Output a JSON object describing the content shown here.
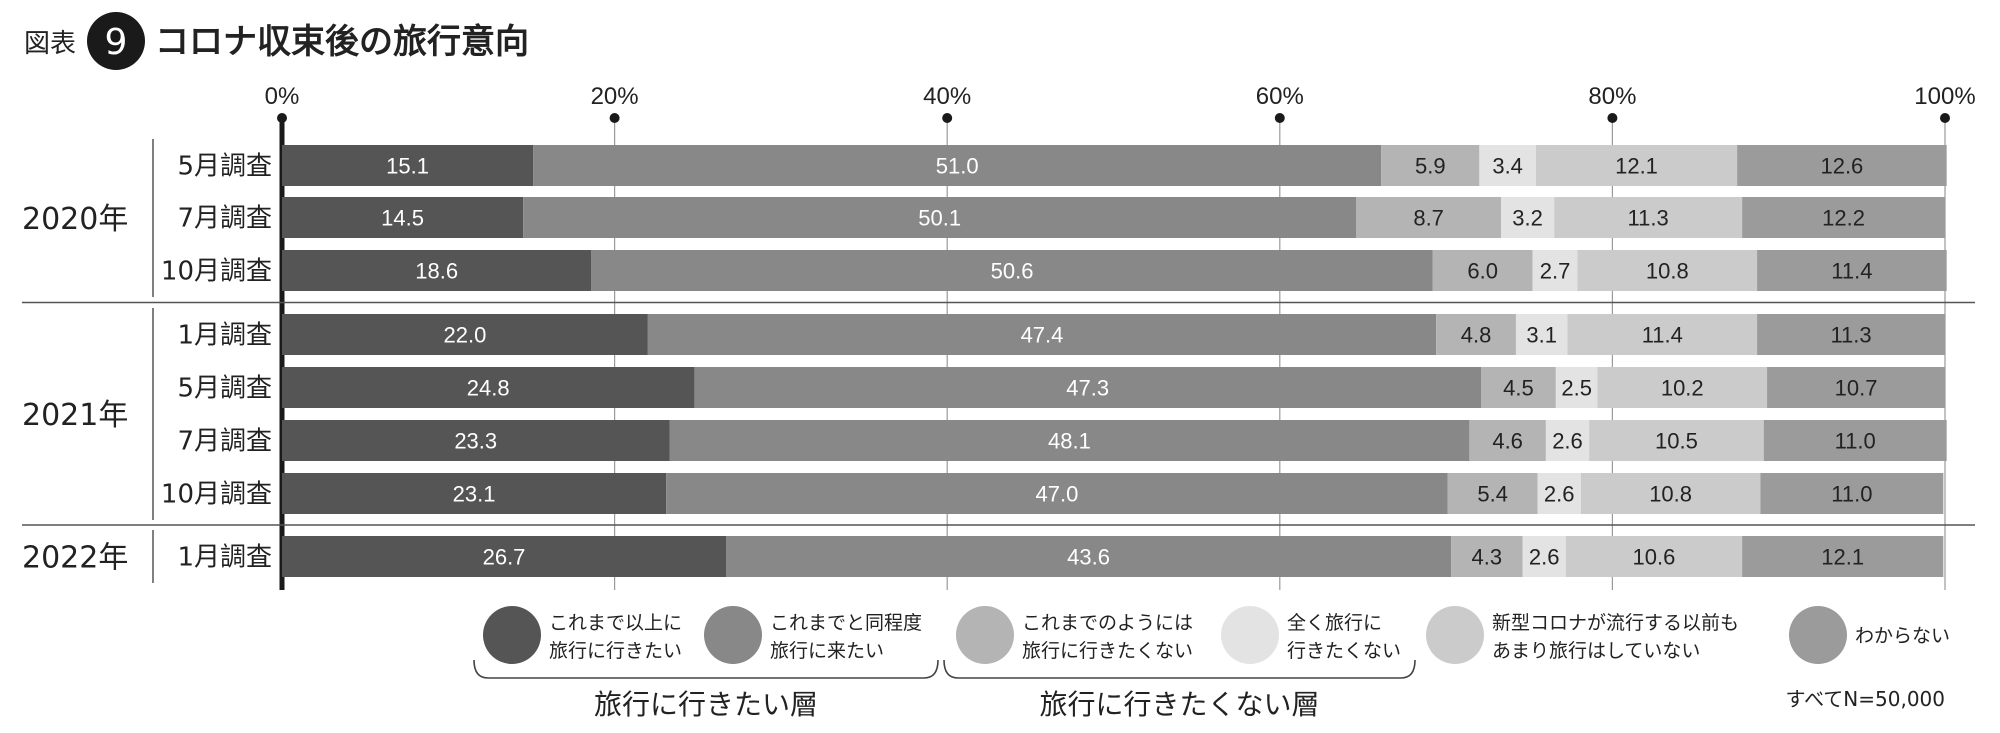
{
  "header": {
    "label": "図表",
    "number": "9",
    "title": "コロナ収束後の旅行意向"
  },
  "note": "すべてN=50,000",
  "chart_data": {
    "type": "bar",
    "orientation": "horizontal",
    "stacked": true,
    "xlim": [
      0,
      100
    ],
    "x_ticks": [
      "0%",
      "20%",
      "40%",
      "60%",
      "80%",
      "100%"
    ],
    "grid": true,
    "legend_position": "bottom",
    "years": [
      {
        "label": "2020年",
        "rows": 3
      },
      {
        "label": "2021年",
        "rows": 4
      },
      {
        "label": "2022年",
        "rows": 1
      }
    ],
    "categories": [
      "5月調査",
      "7月調査",
      "10月調査",
      "1月調査",
      "5月調査",
      "7月調査",
      "10月調査",
      "1月調査"
    ],
    "series": [
      {
        "name": "これまで以上に旅行に行きたい",
        "legend_lines": [
          "これまで以上に",
          "旅行に行きたい"
        ],
        "color": "#555555",
        "label_color": "#ffffff",
        "values": [
          "15.1",
          "14.5",
          "18.6",
          "22.0",
          "24.8",
          "23.3",
          "23.1",
          "26.7"
        ]
      },
      {
        "name": "これまでと同程度旅行に来たい",
        "legend_lines": [
          "これまでと同程度",
          "旅行に来たい"
        ],
        "color": "#888888",
        "label_color": "#ffffff",
        "values": [
          "51.0",
          "50.1",
          "50.6",
          "47.4",
          "47.3",
          "48.1",
          "47.0",
          "43.6"
        ]
      },
      {
        "name": "これまでのようには旅行に行きたくない",
        "legend_lines": [
          "これまでのようには",
          "旅行に行きたくない"
        ],
        "color": "#b4b4b4",
        "label_color": "#222222",
        "values": [
          "5.9",
          "8.7",
          "6.0",
          "4.8",
          "4.5",
          "4.6",
          "5.4",
          "4.3"
        ]
      },
      {
        "name": "全く旅行に行きたくない",
        "legend_lines": [
          "全く旅行に",
          "行きたくない"
        ],
        "color": "#e3e3e3",
        "label_color": "#222222",
        "values": [
          "3.4",
          "3.2",
          "2.7",
          "3.1",
          "2.5",
          "2.6",
          "2.6",
          "2.6"
        ]
      },
      {
        "name": "新型コロナが流行する以前もあまり旅行はしていない",
        "legend_lines": [
          "新型コロナが流行する以前も",
          "あまり旅行はしていない"
        ],
        "color": "#cbcbcb",
        "label_color": "#222222",
        "values": [
          "12.1",
          "11.3",
          "10.8",
          "11.4",
          "10.2",
          "10.5",
          "10.8",
          "10.6"
        ]
      },
      {
        "name": "わからない",
        "legend_lines": [
          "わからない"
        ],
        "color": "#9b9b9b",
        "label_color": "#222222",
        "values": [
          "12.6",
          "12.2",
          "11.4",
          "11.3",
          "10.7",
          "11.0",
          "11.0",
          "12.1"
        ]
      }
    ],
    "legend_groups": [
      {
        "label": "旅行に行きたい層",
        "series": [
          0,
          1
        ]
      },
      {
        "label": "旅行に行きたくない層",
        "series": [
          2,
          3
        ]
      }
    ]
  }
}
